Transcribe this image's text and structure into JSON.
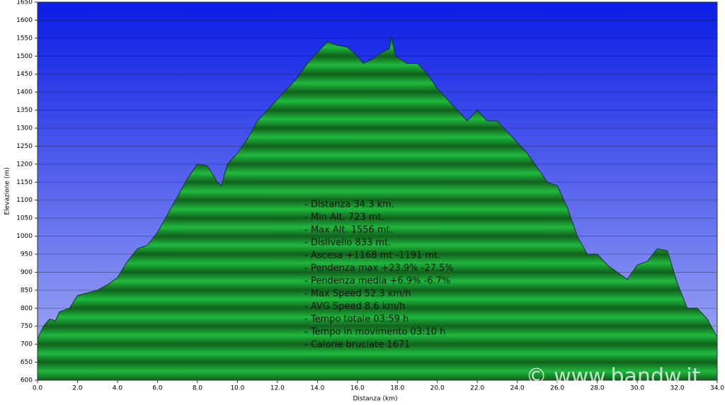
{
  "chart_data": {
    "type": "area",
    "x_label": "Distanza (km)",
    "y_label": "Elevazione (m)",
    "color": "#1fa63a",
    "grid": true,
    "xlim": [
      0,
      34
    ],
    "ylim": [
      600,
      1650
    ],
    "xticks": [
      {
        "value": 0,
        "label": "0.0"
      },
      {
        "value": 2,
        "label": "2.0"
      },
      {
        "value": 4,
        "label": "4.0"
      },
      {
        "value": 6,
        "label": "6.0"
      },
      {
        "value": 8,
        "label": "8.0"
      },
      {
        "value": 10,
        "label": "10.0"
      },
      {
        "value": 12,
        "label": "12.0"
      },
      {
        "value": 14,
        "label": "14.0"
      },
      {
        "value": 16,
        "label": "16.0"
      },
      {
        "value": 18,
        "label": "18.0"
      },
      {
        "value": 20,
        "label": "20.0"
      },
      {
        "value": 22,
        "label": "22.0"
      },
      {
        "value": 24,
        "label": "24.0"
      },
      {
        "value": 26,
        "label": "26.0"
      },
      {
        "value": 28,
        "label": "28.0"
      },
      {
        "value": 30,
        "label": "30.0"
      },
      {
        "value": 32,
        "label": "32.0"
      },
      {
        "value": 34,
        "label": "34.0"
      }
    ],
    "yticks": [
      600,
      650,
      700,
      750,
      800,
      850,
      900,
      950,
      1000,
      1050,
      1100,
      1150,
      1200,
      1250,
      1300,
      1350,
      1400,
      1450,
      1500,
      1550,
      1600,
      1650
    ],
    "x": [
      0,
      0.3,
      0.6,
      0.9,
      1.1,
      1.6,
      2.0,
      3.0,
      3.5,
      4.0,
      4.5,
      5.0,
      5.5,
      6.0,
      6.5,
      7.0,
      7.5,
      8.0,
      8.5,
      9.0,
      9.2,
      9.5,
      10.0,
      10.5,
      11.0,
      11.5,
      12.0,
      12.5,
      13.0,
      13.5,
      14.0,
      14.5,
      15.0,
      15.5,
      16.0,
      16.3,
      16.7,
      17.2,
      17.6,
      17.7,
      17.9,
      18.5,
      19.0,
      19.5,
      20.0,
      20.5,
      21.0,
      21.5,
      22.0,
      22.5,
      23.0,
      23.5,
      24.0,
      24.5,
      25.0,
      25.5,
      26.0,
      26.5,
      27.0,
      27.5,
      28.0,
      28.5,
      29.0,
      29.5,
      30.0,
      30.5,
      31.0,
      31.5,
      32.0,
      32.5,
      33.0,
      33.5,
      34.0
    ],
    "values": [
      715,
      750,
      770,
      765,
      790,
      800,
      835,
      850,
      865,
      885,
      930,
      965,
      975,
      1010,
      1060,
      1110,
      1160,
      1200,
      1195,
      1150,
      1140,
      1200,
      1230,
      1270,
      1320,
      1350,
      1380,
      1410,
      1440,
      1480,
      1510,
      1540,
      1530,
      1525,
      1500,
      1480,
      1490,
      1510,
      1520,
      1556,
      1500,
      1480,
      1480,
      1450,
      1410,
      1380,
      1350,
      1320,
      1350,
      1320,
      1320,
      1290,
      1260,
      1230,
      1190,
      1150,
      1140,
      1080,
      1000,
      950,
      950,
      920,
      900,
      880,
      920,
      930,
      965,
      960,
      870,
      800,
      800,
      770,
      720
    ],
    "annotations": [
      "- Distanza 34.3 km.",
      "- Min Alt. 723 mt.",
      "- Max Alt. 1556 mt.",
      "- Dislivello 833 mt.",
      "- Ascesa +1168 mt -1191 mt.",
      "- Pendenza max +23.9% -27.5%",
      "- Pendenza media +6.9% -6.7%",
      "- Max Speed 52.3 km/h",
      "- AVG Speed 8.6 km/h",
      "- Tempo totale 03:59 h",
      "- Tempo in movimento 03:10 h",
      "- Calorie bruciate 1671"
    ],
    "watermark": "© www.bandw.it"
  }
}
